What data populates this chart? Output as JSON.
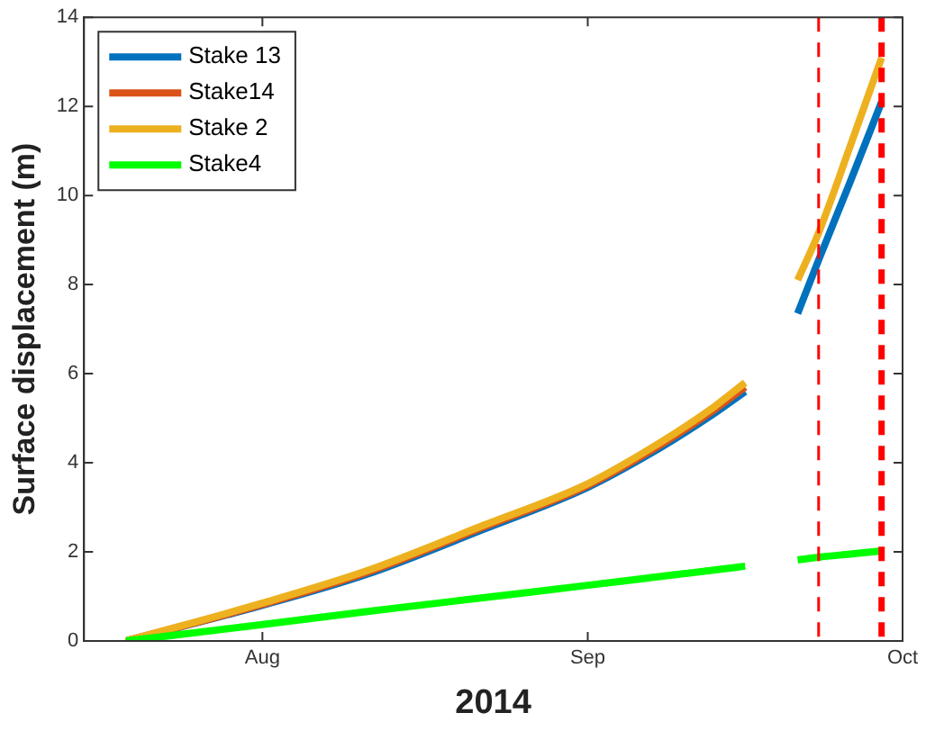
{
  "chart_data": {
    "type": "line",
    "xlabel": "2014",
    "ylabel": "Surface displacement (m)",
    "x": [
      "2014-07-19",
      "2014-08-01",
      "2014-08-11",
      "2014-08-22",
      "2014-09-01",
      "2014-09-08",
      "2014-09-13",
      "2014-09-16",
      "2014-09-18",
      "2014-09-21",
      "2014-09-23",
      "2014-09-26",
      "2014-09-29"
    ],
    "series": [
      {
        "name": "Stake 13",
        "color": "#0072bd",
        "values": [
          0,
          0.8,
          1.5,
          2.5,
          3.45,
          4.35,
          5.1,
          5.6,
          null,
          7.35,
          8.55,
          10.3,
          12.1
        ]
      },
      {
        "name": "Stake14",
        "color": "#d95319",
        "values": [
          0,
          0.82,
          1.54,
          2.55,
          3.49,
          4.41,
          5.18,
          5.7,
          null,
          null,
          null,
          null,
          null
        ]
      },
      {
        "name": "Stake 2",
        "color": "#edb120",
        "values": [
          0,
          0.85,
          1.58,
          2.59,
          3.53,
          4.47,
          5.25,
          5.8,
          null,
          8.1,
          9.16,
          11.1,
          13.09
        ]
      },
      {
        "name": "Stake4",
        "color": "#00ff00",
        "values": [
          0,
          0.37,
          0.66,
          0.97,
          1.25,
          1.45,
          1.59,
          1.68,
          null,
          1.82,
          1.88,
          1.95,
          2.02
        ]
      }
    ],
    "xlim": [
      "2014-07-15",
      "2014-10-01"
    ],
    "xticks": [
      {
        "value": "2014-08-01",
        "label": "Aug"
      },
      {
        "value": "2014-09-01",
        "label": "Sep"
      },
      {
        "value": "2014-10-01",
        "label": "Oct"
      }
    ],
    "ylim": [
      0,
      14
    ],
    "yticks": [
      0,
      2,
      4,
      6,
      8,
      10,
      12,
      14
    ],
    "ref_lines": [
      {
        "axis": "x",
        "value": "2014-09-23",
        "color": "#ff0000",
        "line_style": "dashed"
      },
      {
        "axis": "x",
        "value": "2014-09-29",
        "color": "#ff0000",
        "line_style": "dashed"
      }
    ],
    "grid": false,
    "legend": "top left",
    "marker": "none",
    "line_style": "solid"
  }
}
